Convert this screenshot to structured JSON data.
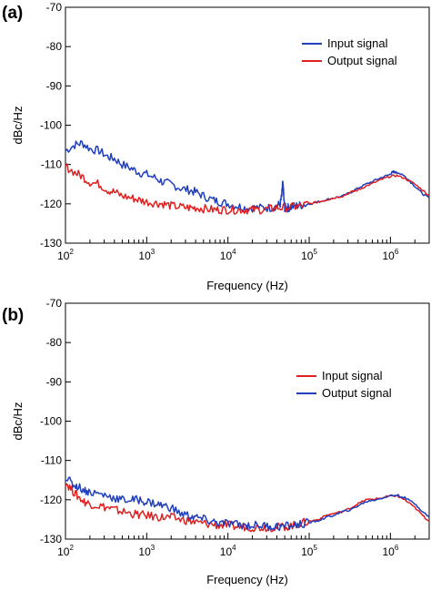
{
  "figure": {
    "panels": [
      "(a)",
      "(b)"
    ]
  },
  "chart_data": [
    {
      "type": "line",
      "panel": "(a)",
      "xlabel": "Frequency (Hz)",
      "ylabel": "dBc/Hz",
      "xscale": "log",
      "xlim": [
        100,
        3000000
      ],
      "ylim": [
        -130,
        -70
      ],
      "xticks": [
        {
          "value": 100,
          "base": "10",
          "exp": "2"
        },
        {
          "value": 1000,
          "base": "10",
          "exp": "3"
        },
        {
          "value": 10000,
          "base": "10",
          "exp": "4"
        },
        {
          "value": 100000,
          "base": "10",
          "exp": "5"
        },
        {
          "value": 1000000,
          "base": "10",
          "exp": "6"
        }
      ],
      "yticks": [
        -70,
        -80,
        -90,
        -100,
        -110,
        -120,
        -130
      ],
      "legend_position": "top-right",
      "grid": false,
      "series": [
        {
          "name": "Input signal",
          "color": "#1f3fbf",
          "x": [
            100,
            130,
            160,
            200,
            260,
            330,
            400,
            500,
            650,
            800,
            1000,
            1300,
            1600,
            2000,
            2600,
            3300,
            4000,
            5000,
            6500,
            8000,
            10000,
            13000,
            16000,
            20000,
            26000,
            33000,
            40000,
            44000,
            46000,
            47000,
            48000,
            49000,
            50000,
            52000,
            55000,
            60000,
            70000,
            80000,
            100000,
            130000,
            160000,
            200000,
            260000,
            330000,
            400000,
            500000,
            650000,
            800000,
            1000000,
            1050000,
            1100000,
            1150000,
            1200000,
            1400000,
            1600000,
            2000000,
            2500000,
            3000000
          ],
          "y": [
            -106.5,
            -105.0,
            -104.5,
            -106.0,
            -106.5,
            -108.0,
            -108.5,
            -110.0,
            -111.0,
            -112.0,
            -112.5,
            -113.5,
            -114.5,
            -115.0,
            -116.0,
            -116.5,
            -117.0,
            -118.0,
            -119.0,
            -119.5,
            -120.0,
            -120.5,
            -121.0,
            -121.0,
            -121.0,
            -121.0,
            -120.5,
            -120.0,
            -118.0,
            -115.0,
            -116.0,
            -119.5,
            -121.0,
            -121.0,
            -121.0,
            -120.8,
            -120.5,
            -120.3,
            -120.0,
            -119.5,
            -119.0,
            -118.5,
            -118.0,
            -117.0,
            -116.0,
            -115.0,
            -114.0,
            -113.2,
            -112.5,
            -112.0,
            -111.8,
            -112.0,
            -112.0,
            -112.5,
            -113.5,
            -115.5,
            -117.5,
            -118.5
          ]
        },
        {
          "name": "Output signal",
          "color": "#e02020",
          "x": [
            100,
            130,
            160,
            200,
            260,
            330,
            400,
            500,
            650,
            800,
            1000,
            1300,
            1600,
            2000,
            2600,
            3300,
            4000,
            5000,
            6500,
            8000,
            10000,
            13000,
            16000,
            20000,
            26000,
            33000,
            40000,
            50000,
            65000,
            80000,
            100000,
            130000,
            160000,
            200000,
            260000,
            330000,
            400000,
            500000,
            650000,
            800000,
            1000000,
            1200000,
            1500000,
            2000000,
            2500000,
            3000000
          ],
          "y": [
            -110.5,
            -112.0,
            -113.0,
            -114.5,
            -115.0,
            -116.5,
            -117.0,
            -118.0,
            -118.5,
            -119.0,
            -119.5,
            -119.8,
            -120.0,
            -120.5,
            -120.8,
            -121.0,
            -121.0,
            -121.2,
            -121.5,
            -121.5,
            -121.5,
            -121.5,
            -121.5,
            -121.5,
            -121.5,
            -121.3,
            -121.0,
            -121.0,
            -120.8,
            -120.5,
            -120.0,
            -119.5,
            -119.0,
            -118.5,
            -118.0,
            -117.0,
            -116.5,
            -115.5,
            -114.5,
            -113.7,
            -113.0,
            -112.8,
            -113.5,
            -115.0,
            -116.5,
            -118.0
          ]
        }
      ]
    },
    {
      "type": "line",
      "panel": "(b)",
      "xlabel": "Frequency (Hz)",
      "ylabel": "dBc/Hz",
      "xscale": "log",
      "xlim": [
        100,
        3000000
      ],
      "ylim": [
        -130,
        -70
      ],
      "xticks": [
        {
          "value": 100,
          "base": "10",
          "exp": "2"
        },
        {
          "value": 1000,
          "base": "10",
          "exp": "3"
        },
        {
          "value": 10000,
          "base": "10",
          "exp": "4"
        },
        {
          "value": 100000,
          "base": "10",
          "exp": "5"
        },
        {
          "value": 1000000,
          "base": "10",
          "exp": "6"
        }
      ],
      "yticks": [
        -70,
        -80,
        -90,
        -100,
        -110,
        -120,
        -130
      ],
      "legend_position": "top-right",
      "grid": false,
      "series": [
        {
          "name": "Input signal",
          "color": "#e02020",
          "x": [
            100,
            120,
            140,
            170,
            200,
            260,
            330,
            400,
            500,
            650,
            800,
            1000,
            1300,
            1600,
            2000,
            2600,
            3300,
            4000,
            5000,
            6500,
            8000,
            10000,
            13000,
            16000,
            20000,
            26000,
            33000,
            40000,
            50000,
            65000,
            80000,
            100000,
            130000,
            160000,
            200000,
            260000,
            330000,
            400000,
            500000,
            650000,
            800000,
            1000000,
            1200000,
            1500000,
            2000000,
            2500000,
            3000000
          ],
          "y": [
            -115.5,
            -117.5,
            -119.0,
            -120.5,
            -121.0,
            -121.5,
            -122.0,
            -122.5,
            -123.0,
            -123.5,
            -123.8,
            -124.0,
            -124.3,
            -124.5,
            -124.5,
            -125.0,
            -125.3,
            -125.8,
            -126.0,
            -126.3,
            -126.5,
            -126.5,
            -126.8,
            -126.8,
            -127.0,
            -127.0,
            -127.0,
            -127.0,
            -126.8,
            -126.5,
            -126.0,
            -125.5,
            -125.0,
            -124.0,
            -123.5,
            -123.0,
            -122.0,
            -121.0,
            -120.0,
            -119.8,
            -119.5,
            -119.0,
            -119.0,
            -120.0,
            -122.0,
            -124.0,
            -125.5
          ]
        },
        {
          "name": "Output signal",
          "color": "#1f3fbf",
          "x": [
            100,
            120,
            140,
            170,
            200,
            260,
            330,
            400,
            500,
            650,
            800,
            1000,
            1300,
            1600,
            2000,
            2600,
            3300,
            4000,
            5000,
            6500,
            8000,
            10000,
            13000,
            16000,
            20000,
            26000,
            33000,
            40000,
            50000,
            65000,
            80000,
            100000,
            130000,
            160000,
            200000,
            260000,
            330000,
            400000,
            500000,
            650000,
            800000,
            1000000,
            1200000,
            1500000,
            2000000,
            2500000,
            3000000
          ],
          "y": [
            -114.0,
            -116.0,
            -116.5,
            -117.5,
            -118.0,
            -118.5,
            -119.0,
            -119.5,
            -120.0,
            -120.0,
            -120.0,
            -120.5,
            -121.0,
            -121.5,
            -122.0,
            -123.5,
            -124.0,
            -124.5,
            -125.0,
            -125.5,
            -126.0,
            -126.0,
            -126.3,
            -126.5,
            -126.5,
            -126.5,
            -126.8,
            -126.8,
            -126.8,
            -126.5,
            -126.2,
            -125.8,
            -125.3,
            -124.5,
            -124.0,
            -123.0,
            -122.5,
            -121.5,
            -120.5,
            -120.0,
            -119.5,
            -119.0,
            -118.8,
            -119.5,
            -121.0,
            -123.0,
            -124.5
          ]
        }
      ]
    }
  ]
}
